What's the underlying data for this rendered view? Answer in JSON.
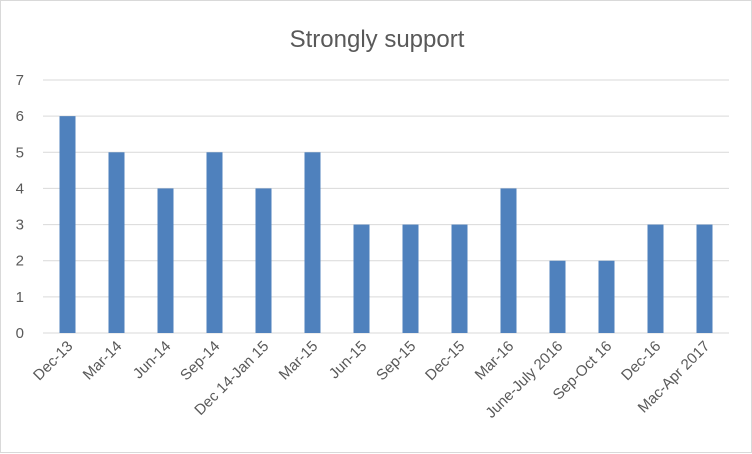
{
  "chart_data": {
    "type": "bar",
    "title": "Strongly support",
    "xlabel": "",
    "ylabel": "",
    "ylim": [
      0,
      7
    ],
    "yticks": [
      0,
      1,
      2,
      3,
      4,
      5,
      6,
      7
    ],
    "grid": true,
    "legend": "none",
    "categories": [
      "Dec-13",
      "Mar-14",
      "Jun-14",
      "Sep-14",
      "Dec 14-Jan 15",
      "Mar-15",
      "Jun-15",
      "Sep-15",
      "Dec-15",
      "Mar-16",
      "June-July 2016",
      "Sep-Oct 16",
      "Dec-16",
      "Mac-Apr 2017"
    ],
    "series": [
      {
        "values": [
          6,
          5,
          4,
          5,
          4,
          5,
          3,
          3,
          3,
          4,
          2,
          2,
          3,
          3
        ],
        "color": "#4f81bd"
      }
    ]
  }
}
